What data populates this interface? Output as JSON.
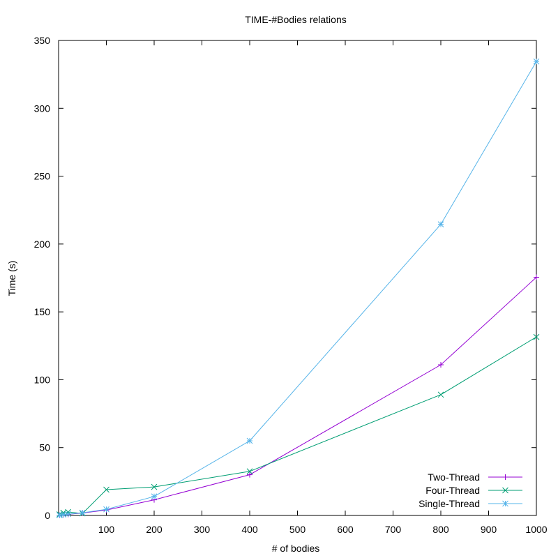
{
  "chart_data": {
    "type": "line",
    "title": "TIME-#Bodies relations",
    "xlabel": "# of bodies",
    "ylabel": "Time (s)",
    "xlim": [
      0,
      1000
    ],
    "ylim": [
      0,
      350
    ],
    "x_ticks": [
      100,
      200,
      300,
      400,
      500,
      600,
      700,
      800,
      900,
      1000
    ],
    "y_ticks": [
      0,
      50,
      100,
      150,
      200,
      250,
      300,
      350
    ],
    "grid": false,
    "legend_position": "bottom-right",
    "series": [
      {
        "name": "Two-Thread",
        "color": "#9400d3",
        "marker": "plus",
        "x": [
          2,
          10,
          20,
          50,
          100,
          200,
          400,
          800,
          1000
        ],
        "y": [
          0.1,
          0.4,
          0.8,
          1.8,
          4.0,
          11.5,
          30.0,
          111.0,
          175.5
        ]
      },
      {
        "name": "Four-Thread",
        "color": "#009e73",
        "marker": "cross",
        "x": [
          2,
          10,
          20,
          50,
          100,
          200,
          400,
          800,
          1000
        ],
        "y": [
          0.8,
          2.0,
          2.5,
          1.5,
          19.0,
          21.0,
          32.5,
          89.0,
          131.5
        ]
      },
      {
        "name": "Single-Thread",
        "color": "#56b4e9",
        "marker": "star",
        "x": [
          2,
          10,
          20,
          50,
          100,
          200,
          400,
          800,
          1000
        ],
        "y": [
          0.2,
          0.6,
          1.0,
          2.0,
          4.5,
          14.0,
          55.0,
          214.5,
          334.5
        ]
      }
    ]
  }
}
